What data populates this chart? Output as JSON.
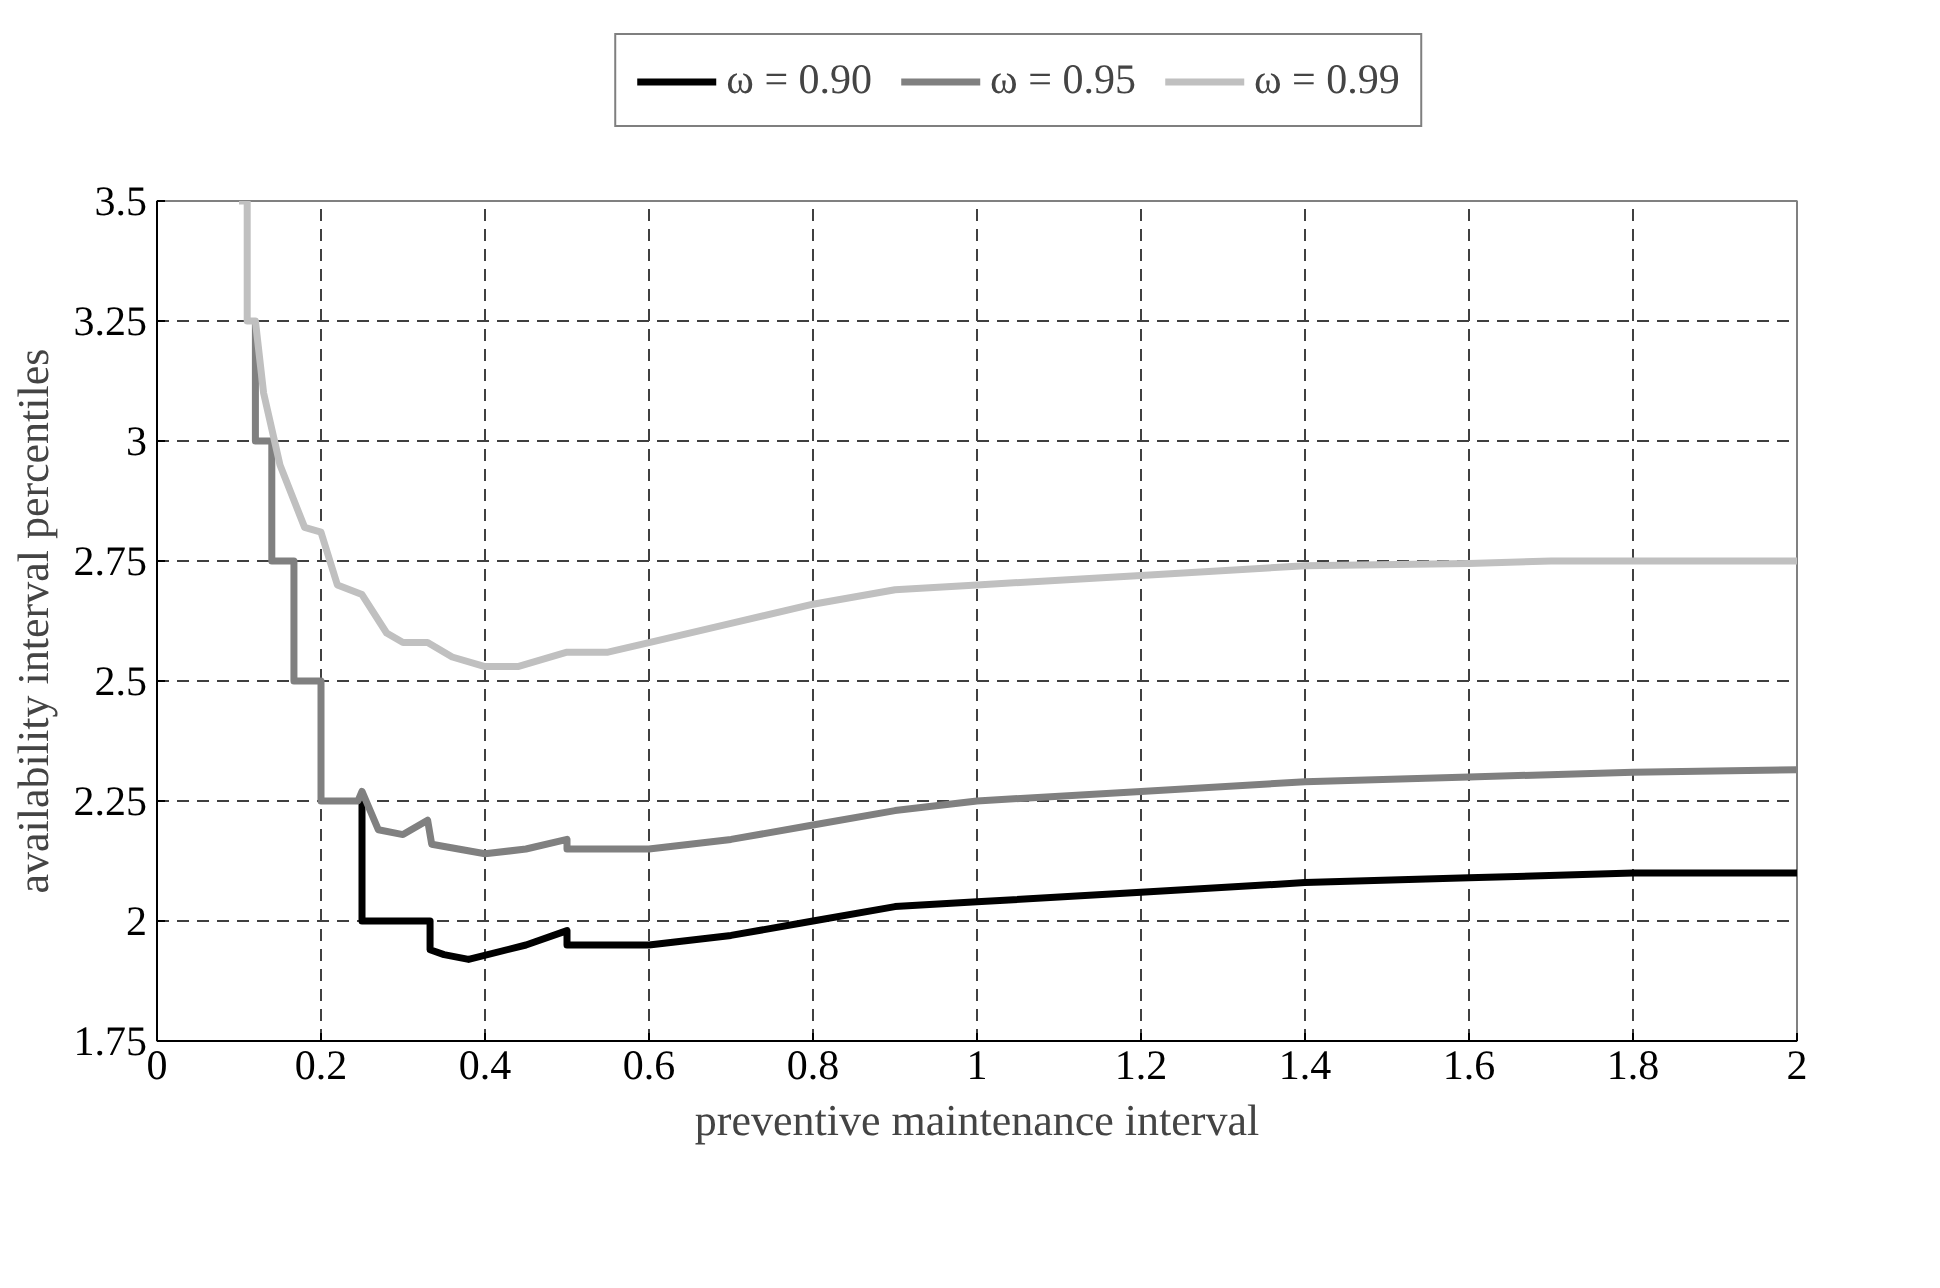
{
  "chart_data": {
    "type": "line",
    "xlabel": "preventive maintenance interval",
    "ylabel": "availability interval percentiles",
    "xlim": [
      0,
      2
    ],
    "ylim": [
      1.75,
      3.5
    ],
    "xticks": [
      0,
      0.2,
      0.4,
      0.6,
      0.8,
      1,
      1.2,
      1.4,
      1.6,
      1.8,
      2
    ],
    "yticks": [
      1.75,
      2,
      2.25,
      2.5,
      2.75,
      3,
      3.25,
      3.5
    ],
    "grid": true,
    "legend": "top",
    "line_style": "solid",
    "marker": "none",
    "series": [
      {
        "name": "ω = 0.90",
        "color": "#000000",
        "x": [
          0.25,
          0.25,
          0.333,
          0.333,
          0.35,
          0.38,
          0.45,
          0.5,
          0.5,
          0.6,
          0.7,
          0.8,
          0.9,
          1.0,
          1.2,
          1.4,
          1.6,
          1.8,
          2.0
        ],
        "values": [
          2.25,
          2.0,
          2.0,
          1.94,
          1.93,
          1.92,
          1.95,
          1.98,
          1.95,
          1.95,
          1.97,
          2.0,
          2.03,
          2.04,
          2.06,
          2.08,
          2.09,
          2.1,
          2.1
        ]
      },
      {
        "name": "ω = 0.95",
        "color": "#808080",
        "x": [
          0.12,
          0.12,
          0.14,
          0.14,
          0.167,
          0.167,
          0.2,
          0.2,
          0.245,
          0.25,
          0.27,
          0.3,
          0.33,
          0.335,
          0.4,
          0.45,
          0.5,
          0.5,
          0.6,
          0.7,
          0.8,
          0.9,
          1.0,
          1.2,
          1.4,
          1.6,
          1.8,
          2.0
        ],
        "values": [
          3.25,
          3.0,
          3.0,
          2.75,
          2.75,
          2.5,
          2.5,
          2.25,
          2.25,
          2.27,
          2.19,
          2.18,
          2.21,
          2.16,
          2.14,
          2.15,
          2.17,
          2.15,
          2.15,
          2.17,
          2.2,
          2.23,
          2.25,
          2.27,
          2.29,
          2.3,
          2.31,
          2.315
        ]
      },
      {
        "name": "ω = 0.99",
        "color": "#c0c0c0",
        "x": [
          0.1,
          0.11,
          0.11,
          0.12,
          0.13,
          0.15,
          0.18,
          0.2,
          0.22,
          0.25,
          0.28,
          0.3,
          0.33,
          0.36,
          0.4,
          0.44,
          0.5,
          0.55,
          0.6,
          0.7,
          0.8,
          0.9,
          1.0,
          1.2,
          1.4,
          1.6,
          1.7,
          2.0
        ],
        "values": [
          3.5,
          3.5,
          3.25,
          3.25,
          3.1,
          2.95,
          2.82,
          2.81,
          2.7,
          2.68,
          2.6,
          2.58,
          2.58,
          2.55,
          2.53,
          2.53,
          2.56,
          2.56,
          2.58,
          2.62,
          2.66,
          2.69,
          2.7,
          2.72,
          2.74,
          2.745,
          2.75,
          2.75
        ]
      }
    ]
  }
}
